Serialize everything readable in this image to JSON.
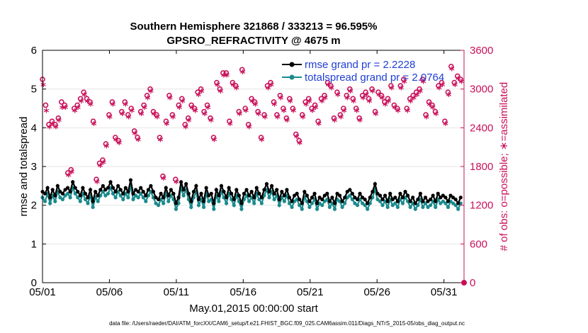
{
  "chart_data": {
    "type": "line",
    "title": "Southern Hemisphere 321868 / 333213 = 96.595%",
    "subtitle": "GPSRO_REFRACTIVITY @ 4675 m",
    "xlabel": "May.01,2015 00:00:00 start",
    "ylabel": "rmse and totalspread",
    "ylabel_right": "# of obs: o=possible; ∗=assimilated",
    "footer": "data file: /Users/raeder/DAI/ATM_forcXX/CAM6_setup/f.e21.FHIST_BGC.f09_025.CAM6assim.011/Diags_NTrS_2015-05/obs_diag_output.nc",
    "xlim": [
      1,
      32.5
    ],
    "ylim": [
      0,
      6
    ],
    "ylim_right": [
      0,
      3600
    ],
    "x_ticks": [
      1,
      6,
      11,
      16,
      21,
      26,
      31
    ],
    "x_tick_labels": [
      "05/01",
      "05/06",
      "05/11",
      "05/16",
      "05/21",
      "05/26",
      "05/31"
    ],
    "y_ticks": [
      0,
      1,
      2,
      3,
      4,
      5,
      6
    ],
    "y_tick_labels": [
      "0",
      "1",
      "2",
      "3",
      "4",
      "5",
      "6"
    ],
    "y_ticks_right": [
      0,
      600,
      1200,
      1800,
      2400,
      3000,
      3600
    ],
    "y_tick_labels_right": [
      "0",
      "600",
      "1200",
      "1800",
      "2400",
      "3000",
      "3600"
    ],
    "series": [
      {
        "name": "rmse",
        "legend": "rmse grand pr = 2.2228",
        "color": "#000000",
        "values": [
          2.35,
          2.3,
          2.45,
          2.2,
          2.4,
          2.25,
          2.5,
          2.35,
          2.3,
          2.4,
          2.45,
          2.35,
          2.6,
          2.45,
          2.35,
          2.25,
          2.45,
          2.3,
          2.2,
          2.4,
          2.1,
          2.35,
          2.25,
          2.4,
          2.5,
          2.4,
          2.45,
          2.6,
          2.45,
          2.35,
          2.5,
          2.4,
          2.3,
          2.45,
          2.35,
          2.65,
          2.3,
          2.4,
          2.35,
          2.45,
          2.35,
          2.25,
          2.4,
          2.5,
          2.35,
          2.2,
          2.15,
          2.3,
          2.2,
          2.45,
          2.25,
          2.4,
          2.3,
          2.05,
          2.2,
          2.6,
          2.4,
          2.55,
          2.3,
          2.1,
          2.35,
          2.5,
          2.15,
          2.3,
          2.1,
          2.45,
          2.25,
          2.3,
          2.05,
          2.4,
          2.25,
          2.5,
          2.35,
          2.2,
          2.45,
          2.3,
          2.15,
          2.4,
          2.25,
          2.05,
          2.3,
          2.4,
          2.25,
          2.35,
          2.2,
          2.45,
          2.3,
          2.2,
          2.4,
          2.55,
          2.35,
          2.5,
          2.3,
          2.4,
          2.15,
          2.35,
          2.25,
          2.4,
          2.2,
          2.1,
          2.25,
          2.3,
          2.15,
          2.05,
          2.35,
          2.25,
          2.1,
          2.2,
          2.3,
          2.05,
          2.2,
          2.15,
          2.25,
          2.3,
          2.1,
          2.2,
          2.05,
          2.3,
          2.25,
          2.1,
          2.2,
          2.35,
          2.4,
          2.3,
          2.2,
          2.15,
          2.3,
          2.2,
          2.15,
          2.05,
          2.2,
          2.35,
          2.55,
          2.3,
          2.25,
          2.15,
          2.25,
          2.1,
          2.3,
          2.15,
          2.2,
          2.1,
          2.3,
          2.2,
          2.35,
          2.25,
          2.1,
          2.2,
          2.05,
          2.15,
          2.3,
          2.1,
          2.2,
          2.1,
          2.15,
          2.25,
          2.1,
          2.3,
          2.2,
          2.25,
          2.2,
          2.1,
          2.25,
          2.2,
          2.15,
          2.05,
          2.2
        ]
      },
      {
        "name": "totalspread",
        "legend": "totalspread grand pr = 2.0764",
        "color": "#1a8a8c",
        "values": [
          2.2,
          2.1,
          2.3,
          2.05,
          2.25,
          2.1,
          2.35,
          2.2,
          2.15,
          2.25,
          2.3,
          2.2,
          2.45,
          2.3,
          2.2,
          2.1,
          2.3,
          2.15,
          2.05,
          2.25,
          1.95,
          2.2,
          2.1,
          2.25,
          2.35,
          2.25,
          2.3,
          2.45,
          2.3,
          2.2,
          2.35,
          2.25,
          2.15,
          2.3,
          2.2,
          2.5,
          2.15,
          2.25,
          2.2,
          2.3,
          2.2,
          2.1,
          2.25,
          2.35,
          2.2,
          2.05,
          2.0,
          2.15,
          2.05,
          2.3,
          2.1,
          2.25,
          2.15,
          1.9,
          2.05,
          2.45,
          2.25,
          2.4,
          2.15,
          1.95,
          2.2,
          2.35,
          2.0,
          2.15,
          1.95,
          2.3,
          2.1,
          2.15,
          1.9,
          2.25,
          2.1,
          2.35,
          2.2,
          2.05,
          2.3,
          2.15,
          2.0,
          2.25,
          2.1,
          1.9,
          2.15,
          2.25,
          2.1,
          2.2,
          2.05,
          2.3,
          2.15,
          2.05,
          2.25,
          2.4,
          2.2,
          2.35,
          2.15,
          2.25,
          2.0,
          2.2,
          2.1,
          2.25,
          2.05,
          1.95,
          2.1,
          2.15,
          2.0,
          1.9,
          2.2,
          2.1,
          1.95,
          2.05,
          2.15,
          1.9,
          2.05,
          2.0,
          2.1,
          2.15,
          1.95,
          2.05,
          1.9,
          2.15,
          2.1,
          1.95,
          2.05,
          2.2,
          2.25,
          2.15,
          2.05,
          2.0,
          2.15,
          2.05,
          2.0,
          1.9,
          2.05,
          2.2,
          2.4,
          2.15,
          2.1,
          2.0,
          2.1,
          1.95,
          2.15,
          2.0,
          2.05,
          1.95,
          2.15,
          2.05,
          2.2,
          2.1,
          1.95,
          2.05,
          1.9,
          2.0,
          2.15,
          1.95,
          2.05,
          1.95,
          2.0,
          2.1,
          1.95,
          2.15,
          2.05,
          2.1,
          2.05,
          1.95,
          2.1,
          2.05,
          2.0,
          1.9,
          2.05
        ]
      },
      {
        "name": "nobs_possible",
        "axis": "right",
        "marker": "o",
        "color": "#c8105a",
        "values": [
          3150,
          2750,
          2450,
          2500,
          2450,
          2550,
          2800,
          2750,
          1700,
          1750,
          2700,
          2750,
          2850,
          2950,
          2850,
          2800,
          2500,
          1600,
          1850,
          1900,
          2150,
          2600,
          2800,
          2250,
          2200,
          2650,
          2800,
          2600,
          2700,
          2350,
          2250,
          2650,
          2750,
          2900,
          3000,
          2650,
          2600,
          2250,
          1650,
          2500,
          2900,
          2600,
          1600,
          2750,
          2850,
          2450,
          2550,
          2750,
          2700,
          2950,
          3000,
          2650,
          2750,
          2550,
          2250,
          3100,
          3000,
          3250,
          3250,
          2500,
          3100,
          3050,
          2650,
          3300,
          2700,
          2450,
          2850,
          2800,
          2650,
          2250,
          2600,
          3050,
          3100,
          2800,
          2600,
          2900,
          2700,
          2550,
          2850,
          2700,
          2300,
          2200,
          2600,
          2800,
          2850,
          2700,
          2750,
          2500,
          2850,
          2900,
          3100,
          3050,
          2550,
          2950,
          2600,
          2700,
          2900,
          3000,
          2850,
          2700,
          2550,
          2900,
          2950,
          2850,
          3000,
          2650,
          2950,
          2900,
          2800,
          2850,
          3050,
          2750,
          2700,
          3050,
          3150,
          2700,
          2850,
          2900,
          2950,
          3000,
          3150,
          2600,
          2800,
          2750,
          2650,
          3050,
          3100,
          2500,
          2950,
          3350,
          3100,
          3200,
          3150
        ]
      },
      {
        "name": "nobs_assimilated",
        "axis": "right",
        "marker": "*",
        "color": "#c8105a",
        "values": [
          3050,
          2650,
          2400,
          2450,
          2400,
          2500,
          2700,
          2700,
          1650,
          1700,
          2650,
          2700,
          2800,
          2900,
          2800,
          2750,
          2450,
          1550,
          1800,
          1850,
          2100,
          2550,
          2750,
          2200,
          2150,
          2600,
          2750,
          2550,
          2650,
          2300,
          2200,
          2600,
          2700,
          2850,
          2950,
          2600,
          2550,
          2200,
          1600,
          2450,
          2850,
          2550,
          1550,
          2700,
          2800,
          2400,
          2500,
          2700,
          2650,
          2900,
          2950,
          2600,
          2700,
          2500,
          2200,
          3050,
          2950,
          3200,
          3200,
          2450,
          3050,
          3000,
          2600,
          3250,
          2650,
          2400,
          2800,
          2750,
          2600,
          2200,
          2550,
          3000,
          3050,
          2750,
          2550,
          2850,
          2650,
          2500,
          2800,
          2650,
          2250,
          2150,
          2550,
          2750,
          2800,
          2650,
          2700,
          2450,
          2800,
          2850,
          3050,
          3000,
          2500,
          2900,
          2550,
          2650,
          2850,
          2950,
          2800,
          2650,
          2500,
          2850,
          2900,
          2800,
          2950,
          2600,
          2900,
          2850,
          2750,
          2800,
          3000,
          2700,
          2650,
          3000,
          3100,
          2650,
          2800,
          2850,
          2900,
          2950,
          3100,
          2550,
          2750,
          2700,
          2600,
          3000,
          3050,
          2450,
          2900,
          3300,
          3050,
          3150,
          3100
        ]
      }
    ]
  }
}
